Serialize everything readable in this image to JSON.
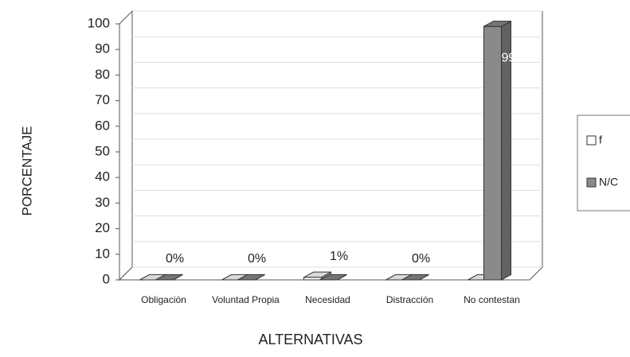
{
  "chart_data": {
    "type": "bar3d",
    "x_label": "ALTERNATIVAS",
    "y_label": "PORCENTAJE",
    "categories": [
      "Obligación",
      "Voluntad Propia",
      "Necesidad",
      "Distracción",
      "No contestan"
    ],
    "series": [
      {
        "name": "f",
        "color": "#ffffff",
        "values": [
          0,
          0,
          1,
          0,
          0
        ],
        "value_labels": [
          "0%",
          "0%",
          "1%",
          "0%",
          null
        ]
      },
      {
        "name": "N/C",
        "color": "#8a8a8a",
        "values": [
          0,
          0,
          0,
          0,
          99
        ],
        "value_labels": [
          null,
          null,
          null,
          null,
          "99%"
        ]
      }
    ],
    "ylim": [
      0,
      100
    ],
    "yticks": [
      0,
      10,
      20,
      30,
      40,
      50,
      60,
      70,
      80,
      90,
      100
    ],
    "grid": true,
    "legend": "right"
  }
}
